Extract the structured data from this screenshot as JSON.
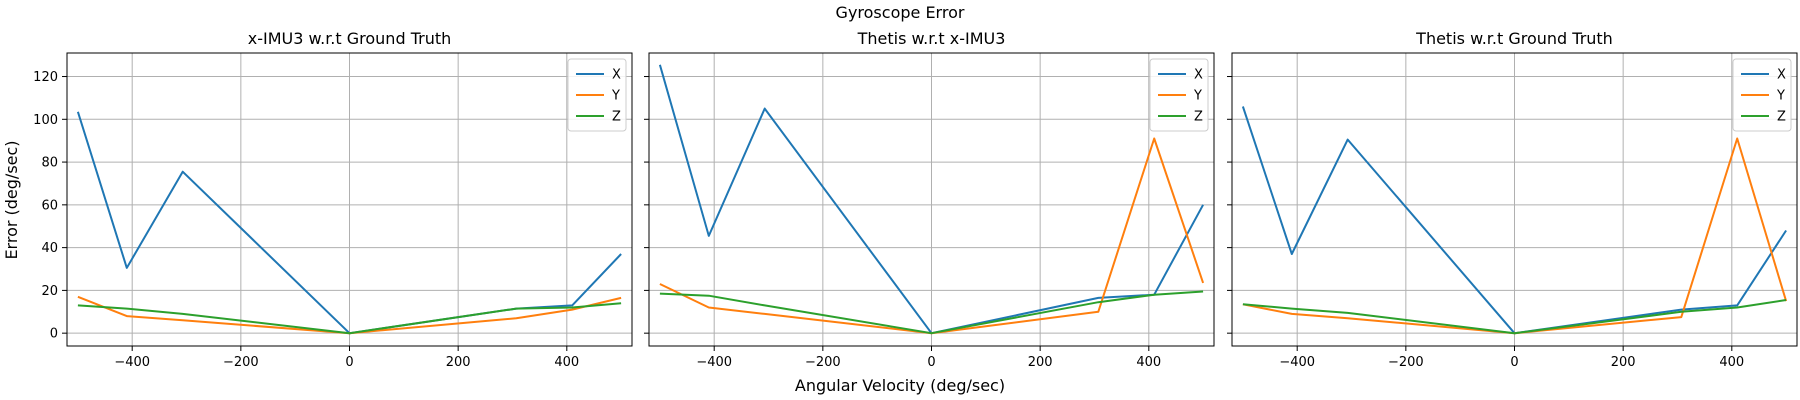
{
  "figure_title": "Gyroscope Error",
  "xlabel": "Angular Velocity (deg/sec)",
  "ylabel": "Error (deg/sec)",
  "colors": {
    "X": "#1f77b4",
    "Y": "#ff7f0e",
    "Z": "#2ca02c"
  },
  "chart_data": [
    {
      "type": "line",
      "title": "x-IMU3 w.r.t Ground Truth",
      "x": [
        -500,
        -410,
        -307,
        0,
        307,
        410,
        500
      ],
      "xlim": [
        -520,
        520
      ],
      "ylim": [
        -6,
        131
      ],
      "xticks": [
        -400,
        -200,
        0,
        200,
        400
      ],
      "yticks": [
        0,
        20,
        40,
        60,
        80,
        100,
        120
      ],
      "xtick_labels": [
        "−400",
        "−200",
        "0",
        "200",
        "400"
      ],
      "ytick_labels": [
        "0",
        "20",
        "40",
        "60",
        "80",
        "100",
        "120"
      ],
      "grid": true,
      "legend": "top-right",
      "series": [
        {
          "name": "X",
          "values": [
            103.5,
            30.5,
            75.5,
            0,
            11.5,
            13,
            37
          ]
        },
        {
          "name": "Y",
          "values": [
            17,
            8,
            6,
            0,
            7,
            11,
            16.5
          ]
        },
        {
          "name": "Z",
          "values": [
            13,
            11.5,
            9,
            0,
            11.5,
            12,
            14
          ]
        }
      ]
    },
    {
      "type": "line",
      "title": "Thetis w.r.t x-IMU3",
      "x": [
        -500,
        -410,
        -307,
        0,
        307,
        410,
        500
      ],
      "xlim": [
        -520,
        520
      ],
      "ylim": [
        -6,
        131
      ],
      "xticks": [
        -400,
        -200,
        0,
        200,
        400
      ],
      "yticks": [
        0,
        20,
        40,
        60,
        80,
        100,
        120
      ],
      "xtick_labels": [
        "−400",
        "−200",
        "0",
        "200",
        "400"
      ],
      "ytick_labels": [],
      "grid": true,
      "legend": "top-right",
      "series": [
        {
          "name": "X",
          "values": [
            125.5,
            45.5,
            105,
            0,
            16.5,
            18,
            60
          ]
        },
        {
          "name": "Y",
          "values": [
            23,
            12,
            9,
            0,
            10,
            91,
            23.5
          ]
        },
        {
          "name": "Z",
          "values": [
            18.5,
            17.5,
            13,
            0,
            14.5,
            18,
            19.5
          ]
        }
      ]
    },
    {
      "type": "line",
      "title": "Thetis w.r.t Ground Truth",
      "x": [
        -500,
        -410,
        -307,
        0,
        307,
        410,
        500
      ],
      "xlim": [
        -520,
        520
      ],
      "ylim": [
        -6,
        131
      ],
      "xticks": [
        -400,
        -200,
        0,
        200,
        400
      ],
      "yticks": [
        0,
        20,
        40,
        60,
        80,
        100,
        120
      ],
      "xtick_labels": [
        "−400",
        "−200",
        "0",
        "200",
        "400"
      ],
      "ytick_labels": [],
      "grid": true,
      "legend": "top-right",
      "series": [
        {
          "name": "X",
          "values": [
            106,
            37,
            90.5,
            0,
            11,
            13,
            48
          ]
        },
        {
          "name": "Y",
          "values": [
            13.5,
            9,
            7,
            0,
            7.5,
            91,
            15
          ]
        },
        {
          "name": "Z",
          "values": [
            13.5,
            11.5,
            9.5,
            0,
            10,
            12,
            15.5
          ]
        }
      ]
    }
  ]
}
